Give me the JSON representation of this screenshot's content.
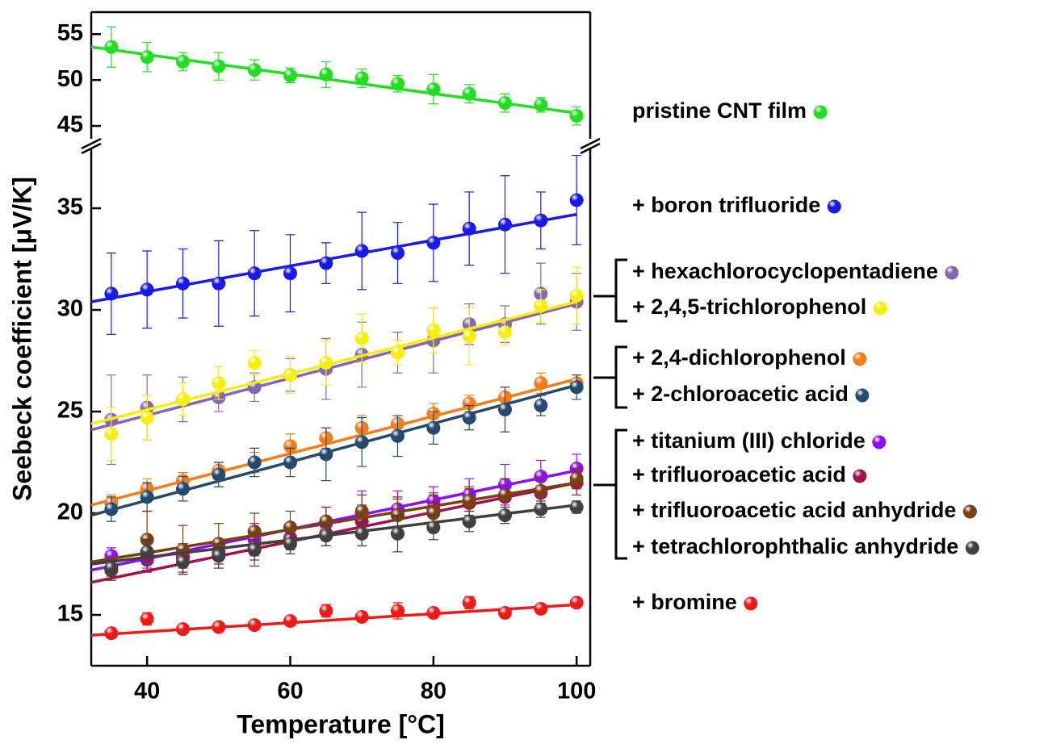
{
  "chart_data": {
    "type": "scatter",
    "x_label": "Temperature [°C]",
    "y_label": "Seebeck coefficient [μV/K]",
    "xlim": [
      32.2,
      101.9
    ],
    "xticks": [
      40,
      60,
      80,
      100
    ],
    "panels": [
      {
        "ylim": [
          43.6,
          57.4
        ],
        "yticks": [
          45,
          50,
          55
        ]
      },
      {
        "ylim": [
          12.5,
          37.9
        ],
        "yticks": [
          15,
          20,
          25,
          30,
          35
        ]
      }
    ],
    "x": [
      35,
      40,
      45,
      50,
      55,
      60,
      65,
      70,
      75,
      80,
      85,
      90,
      95,
      100
    ],
    "fit_x": [
      32.2,
      100
    ],
    "series": [
      {
        "name": "pristine CNT film",
        "color": "#22dd22",
        "panel": 0,
        "values": [
          53.6,
          52.5,
          52.0,
          51.5,
          51.1,
          50.5,
          50.6,
          50.2,
          49.6,
          49.0,
          48.5,
          47.5,
          47.3,
          46.1
        ],
        "errors": [
          2.2,
          1.6,
          1.0,
          1.5,
          1.1,
          0.8,
          1.4,
          1.0,
          0.9,
          1.6,
          1.0,
          1.0,
          0.8,
          1.0
        ],
        "fit": [
          53.6,
          46.4
        ]
      },
      {
        "name": "+ boron trifluoride",
        "color": "#1a1ae6",
        "panel": 1,
        "values": [
          30.8,
          31.0,
          31.3,
          31.3,
          31.8,
          31.8,
          32.3,
          32.9,
          32.8,
          33.3,
          34.0,
          34.2,
          34.4,
          35.4
        ],
        "errors": [
          2.0,
          1.9,
          1.7,
          2.1,
          2.1,
          1.9,
          1.0,
          1.9,
          1.5,
          1.9,
          1.8,
          2.4,
          1.4,
          2.2
        ],
        "fit": [
          30.4,
          34.7
        ]
      },
      {
        "name": "+ hexachlorocyclopentadiene",
        "color": "#8466b4",
        "panel": 1,
        "values": [
          24.6,
          25.2,
          25.6,
          25.7,
          26.2,
          26.8,
          27.1,
          27.8,
          27.9,
          28.5,
          29.3,
          29.3,
          30.8,
          30.4
        ],
        "errors": [
          2.2,
          1.6,
          1.1,
          0.7,
          0.7,
          0.8,
          1.5,
          1.6,
          1.0,
          1.6,
          1.0,
          0.9,
          1.5,
          1.4
        ],
        "fit": [
          24.1,
          30.3
        ]
      },
      {
        "name": "+ 2,4,5-trichlorophenol",
        "color": "#f5ee10",
        "panel": 1,
        "values": [
          23.9,
          24.7,
          25.6,
          26.4,
          27.4,
          26.8,
          27.4,
          28.6,
          27.9,
          29.0,
          28.7,
          28.9,
          30.2,
          30.7
        ],
        "errors": [
          1.3,
          1.1,
          0.8,
          0.8,
          0.6,
          0.9,
          1.1,
          1.2,
          0.6,
          1.1,
          1.4,
          0.6,
          0.8,
          1.4
        ],
        "fit": [
          24.4,
          30.4
        ]
      },
      {
        "name": "+ 2,4-dichlorophenol",
        "color": "#f57c1a",
        "panel": 1,
        "values": [
          20.5,
          21.2,
          21.6,
          22.1,
          22.5,
          23.3,
          23.7,
          24.2,
          24.4,
          24.9,
          25.4,
          25.7,
          26.4,
          26.4
        ],
        "errors": [
          0.4,
          0.5,
          0.4,
          0.4,
          0.5,
          0.6,
          0.5,
          0.6,
          0.4,
          0.5,
          0.4,
          0.5,
          0.5,
          0.4
        ],
        "fit": [
          20.4,
          26.6
        ]
      },
      {
        "name": "+ 2-chloroacetic acid",
        "color": "#254a6e",
        "panel": 1,
        "values": [
          20.2,
          20.8,
          21.2,
          21.9,
          22.5,
          22.5,
          22.9,
          23.5,
          23.8,
          24.2,
          24.7,
          25.1,
          25.3,
          26.2
        ],
        "errors": [
          0.6,
          0.7,
          0.6,
          0.6,
          0.7,
          0.7,
          1.3,
          1.2,
          1.0,
          0.8,
          0.6,
          1.1,
          0.5,
          0.6
        ],
        "fit": [
          19.9,
          26.3
        ]
      },
      {
        "name": "+ titanium (III) chloride",
        "color": "#8a10f0",
        "panel": 1,
        "values": [
          17.9,
          17.7,
          17.9,
          18.1,
          18.7,
          18.8,
          19.5,
          20.0,
          20.2,
          20.6,
          20.9,
          21.4,
          21.8,
          22.2
        ],
        "errors": [
          0.4,
          0.5,
          0.6,
          0.6,
          0.8,
          0.6,
          0.8,
          1.1,
          0.9,
          0.7,
          0.8,
          1.0,
          0.8,
          0.7
        ],
        "fit": [
          17.2,
          22.1
        ]
      },
      {
        "name": "+ trifluoroacetic acid",
        "color": "#a3124e",
        "panel": 1,
        "values": [
          17.2,
          17.9,
          17.8,
          18.0,
          18.3,
          18.7,
          19.0,
          19.6,
          19.9,
          20.2,
          20.5,
          20.8,
          21.0,
          21.5
        ],
        "errors": [
          0.5,
          0.8,
          0.7,
          0.7,
          0.9,
          0.7,
          0.6,
          0.8,
          0.9,
          0.8,
          0.7,
          0.9,
          0.7,
          0.6
        ],
        "fit": [
          16.6,
          21.5
        ]
      },
      {
        "name": "+ trifluoroacetic acid anhydride",
        "color": "#7a3f12",
        "panel": 1,
        "values": [
          17.2,
          18.7,
          18.2,
          18.5,
          19.1,
          19.3,
          19.6,
          20.1,
          19.9,
          20.0,
          20.6,
          20.9,
          21.1,
          21.7
        ],
        "errors": [
          0.5,
          1.4,
          1.2,
          1.0,
          0.9,
          0.8,
          0.7,
          0.8,
          0.8,
          0.9,
          0.7,
          0.8,
          0.6,
          0.5
        ],
        "fit": [
          17.6,
          21.5
        ]
      },
      {
        "name": "+ tetrachlorophthalic anhydride",
        "color": "#404040",
        "panel": 1,
        "values": [
          17.3,
          18.1,
          17.6,
          17.9,
          18.2,
          18.5,
          18.9,
          19.0,
          19.0,
          19.3,
          19.6,
          19.9,
          20.2,
          20.3
        ],
        "errors": [
          0.4,
          0.6,
          0.6,
          0.6,
          0.5,
          0.5,
          0.5,
          0.6,
          0.9,
          0.6,
          0.5,
          0.4,
          0.4,
          0.3
        ],
        "fit": [
          17.5,
          20.4
        ]
      },
      {
        "name": "+ bromine",
        "color": "#ee1a1a",
        "panel": 1,
        "values": [
          14.1,
          14.8,
          14.3,
          14.4,
          14.5,
          14.7,
          15.2,
          14.9,
          15.2,
          15.1,
          15.6,
          15.1,
          15.3,
          15.6
        ],
        "errors": [
          0.2,
          0.3,
          0.2,
          0.2,
          0.2,
          0.2,
          0.3,
          0.2,
          0.4,
          0.2,
          0.3,
          0.2,
          0.2,
          0.2
        ],
        "fit": [
          14.0,
          15.5
        ]
      }
    ]
  }
}
